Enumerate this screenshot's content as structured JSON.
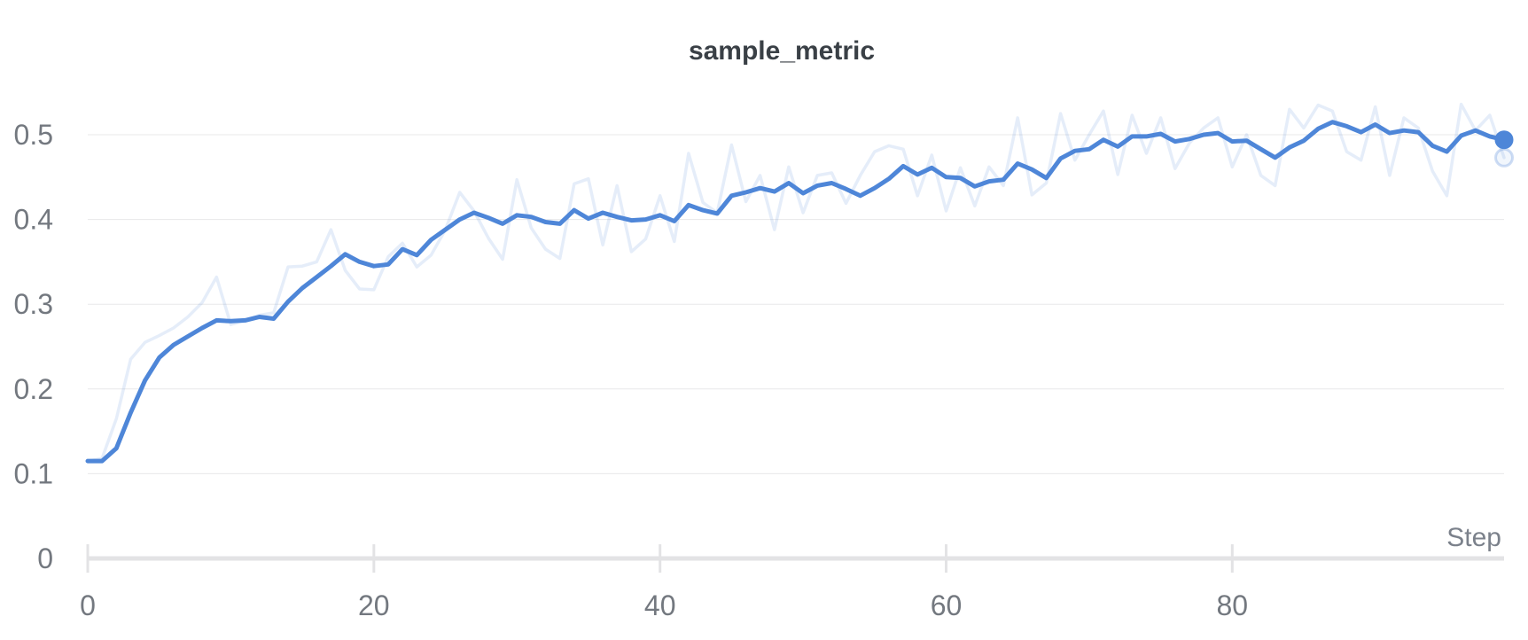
{
  "colors": {
    "background": "#ffffff",
    "line": "#4e86d8",
    "raw_line": "rgba(78,134,216,0.15)",
    "gridline": "#e8e8ea",
    "axis_line": "#e3e3e5",
    "tick_label": "#73787f",
    "title": "#3a4046",
    "axis_title": "#7b818b"
  },
  "chart_data": {
    "type": "line",
    "title": "sample_metric",
    "xlabel": "Step",
    "ylabel": "",
    "grid": "horizontal-only",
    "legend": "none",
    "x_axis": {
      "ticks": [
        0,
        20,
        40,
        60,
        80
      ],
      "max": 99,
      "range": [
        0,
        99
      ]
    },
    "y_axis": {
      "ticks": [
        0,
        0.1,
        0.2,
        0.3,
        0.4,
        0.5
      ],
      "range": [
        0,
        0.545
      ]
    },
    "steps": [
      0,
      1,
      2,
      3,
      4,
      5,
      6,
      7,
      8,
      9,
      10,
      11,
      12,
      13,
      14,
      15,
      16,
      17,
      18,
      19,
      20,
      21,
      22,
      23,
      24,
      25,
      26,
      27,
      28,
      29,
      30,
      31,
      32,
      33,
      34,
      35,
      36,
      37,
      38,
      39,
      40,
      41,
      42,
      43,
      44,
      45,
      46,
      47,
      48,
      49,
      50,
      51,
      52,
      53,
      54,
      55,
      56,
      57,
      58,
      59,
      60,
      61,
      62,
      63,
      64,
      65,
      66,
      67,
      68,
      69,
      70,
      71,
      72,
      73,
      74,
      75,
      76,
      77,
      78,
      79,
      80,
      81,
      82,
      83,
      84,
      85,
      86,
      87,
      88,
      89,
      90,
      91,
      92,
      93,
      94,
      95,
      96,
      97,
      98,
      99
    ],
    "series": [
      {
        "name": "sample_metric (raw)",
        "role": "raw",
        "color": "rgba(78,134,216,0.15)",
        "values": [
          0.115,
          0.118,
          0.165,
          0.235,
          0.255,
          0.263,
          0.272,
          0.285,
          0.302,
          0.332,
          0.276,
          0.281,
          0.287,
          0.29,
          0.344,
          0.345,
          0.35,
          0.388,
          0.34,
          0.318,
          0.317,
          0.356,
          0.372,
          0.344,
          0.358,
          0.388,
          0.432,
          0.41,
          0.378,
          0.353,
          0.447,
          0.39,
          0.365,
          0.354,
          0.442,
          0.448,
          0.37,
          0.44,
          0.362,
          0.377,
          0.428,
          0.374,
          0.478,
          0.42,
          0.408,
          0.488,
          0.421,
          0.452,
          0.388,
          0.462,
          0.408,
          0.452,
          0.455,
          0.419,
          0.452,
          0.48,
          0.487,
          0.483,
          0.428,
          0.476,
          0.41,
          0.461,
          0.416,
          0.462,
          0.44,
          0.52,
          0.429,
          0.443,
          0.525,
          0.47,
          0.5,
          0.528,
          0.453,
          0.523,
          0.478,
          0.52,
          0.46,
          0.49,
          0.508,
          0.52,
          0.462,
          0.5,
          0.452,
          0.44,
          0.53,
          0.508,
          0.535,
          0.528,
          0.48,
          0.47,
          0.533,
          0.452,
          0.52,
          0.508,
          0.457,
          0.428,
          0.536,
          0.505,
          0.523,
          0.473
        ]
      },
      {
        "name": "sample_metric (smoothed)",
        "role": "smoothed",
        "color": "#4e86d8",
        "values": [
          0.115,
          0.115,
          0.13,
          0.172,
          0.21,
          0.237,
          0.252,
          0.262,
          0.272,
          0.281,
          0.28,
          0.281,
          0.285,
          0.283,
          0.303,
          0.319,
          0.332,
          0.345,
          0.359,
          0.35,
          0.345,
          0.347,
          0.365,
          0.358,
          0.376,
          0.388,
          0.4,
          0.408,
          0.402,
          0.395,
          0.405,
          0.403,
          0.397,
          0.395,
          0.411,
          0.401,
          0.408,
          0.403,
          0.399,
          0.4,
          0.405,
          0.398,
          0.417,
          0.411,
          0.407,
          0.428,
          0.432,
          0.437,
          0.433,
          0.443,
          0.431,
          0.44,
          0.443,
          0.436,
          0.428,
          0.437,
          0.448,
          0.463,
          0.453,
          0.461,
          0.45,
          0.449,
          0.439,
          0.445,
          0.447,
          0.466,
          0.459,
          0.449,
          0.472,
          0.481,
          0.483,
          0.494,
          0.486,
          0.498,
          0.498,
          0.501,
          0.492,
          0.495,
          0.5,
          0.502,
          0.492,
          0.493,
          0.483,
          0.473,
          0.485,
          0.493,
          0.507,
          0.515,
          0.51,
          0.503,
          0.512,
          0.502,
          0.505,
          0.503,
          0.487,
          0.48,
          0.499,
          0.505,
          0.498,
          0.494
        ]
      }
    ],
    "end_markers": {
      "smoothed": {
        "step": 99,
        "value": 0.494
      },
      "raw": {
        "step": 99,
        "value": 0.473
      }
    }
  }
}
